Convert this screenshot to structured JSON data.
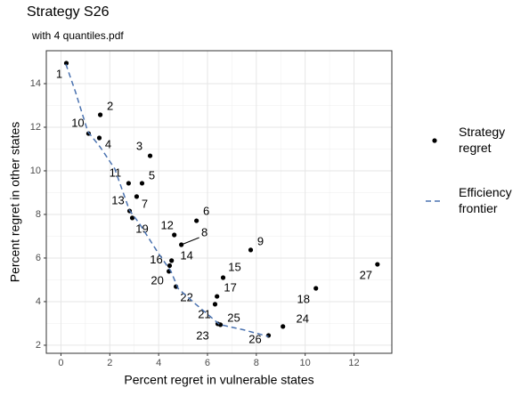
{
  "chart_data": {
    "type": "scatter",
    "title": "Strategy S26",
    "subtitle": "with 4 quantiles.pdf",
    "x_label": "Percent regret in vulnerable states",
    "y_label": "Percent regret in other states",
    "xlim": [
      -0.6,
      13.55
    ],
    "ylim": [
      1.63,
      15.51
    ],
    "xticks": [
      0,
      2,
      4,
      6,
      8,
      10,
      12
    ],
    "yticks": [
      2,
      4,
      6,
      8,
      10,
      12,
      14
    ],
    "grid": true,
    "legend": "right",
    "series": [
      {
        "name": "Strategy regret",
        "color": "#000000",
        "labels": [
          "1",
          "2",
          "3",
          "4",
          "5",
          "6",
          "7",
          "8",
          "9",
          "10",
          "11",
          "12",
          "13",
          "14",
          "15",
          "16",
          "17",
          "18",
          "19",
          "20",
          "21",
          "22",
          "23",
          "24",
          "25",
          "26",
          "27"
        ],
        "x": [
          0.22,
          1.61,
          3.65,
          1.57,
          3.32,
          5.55,
          3.1,
          4.93,
          7.77,
          1.13,
          2.77,
          4.64,
          2.81,
          4.53,
          6.64,
          4.45,
          6.39,
          10.44,
          2.92,
          4.42,
          6.31,
          4.71,
          6.53,
          9.09,
          6.42,
          8.5,
          12.96
        ],
        "values": [
          14.94,
          12.57,
          10.69,
          11.51,
          9.43,
          7.71,
          8.82,
          6.61,
          6.37,
          11.71,
          9.43,
          7.06,
          8.16,
          5.88,
          5.1,
          5.65,
          4.24,
          4.61,
          7.84,
          5.39,
          3.88,
          4.69,
          2.94,
          2.86,
          2.98,
          2.45,
          5.71
        ]
      },
      {
        "name": "Efficiency frontier",
        "color": "#4a72b0",
        "line": "dashed",
        "x": [
          0.2,
          0.6,
          1.1,
          1.6,
          2.2,
          2.8,
          3.2,
          4.0,
          4.5,
          4.8,
          5.5,
          6.5,
          7.5,
          8.5
        ],
        "values": [
          14.9,
          13.6,
          11.8,
          11.1,
          10.1,
          8.2,
          7.6,
          6.2,
          5.4,
          4.6,
          3.9,
          2.95,
          2.7,
          2.4
        ]
      }
    ]
  }
}
